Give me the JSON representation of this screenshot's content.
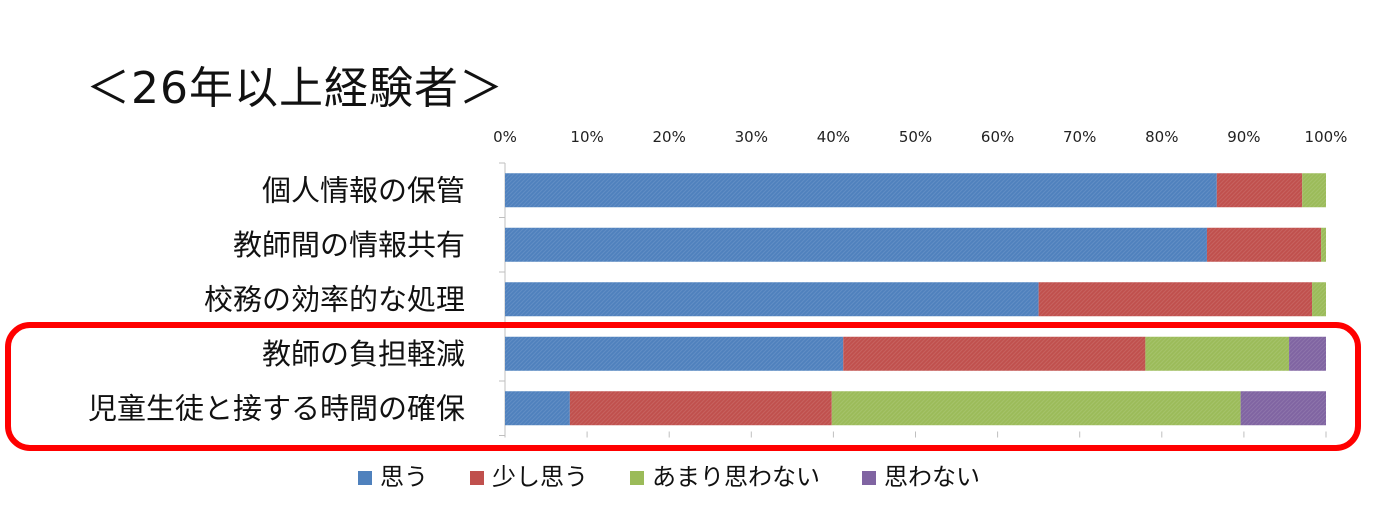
{
  "chart_data": {
    "type": "bar",
    "orientation": "horizontal",
    "stacked": true,
    "title": "＜26年以上経験者＞",
    "xlabel": "",
    "ylabel": "",
    "xlim": [
      0,
      100
    ],
    "x_ticks": [
      "0%",
      "10%",
      "20%",
      "30%",
      "40%",
      "50%",
      "60%",
      "70%",
      "80%",
      "90%",
      "100%"
    ],
    "categories": [
      "個人情報の保管",
      "教師間の情報共有",
      "校務の効率的な処理",
      "教師の負担軽減",
      "児童生徒と接する時間の確保"
    ],
    "series": [
      {
        "name": "思う",
        "color": "#4f81bd",
        "values": [
          86.7,
          85.5,
          65.0,
          41.2,
          7.9
        ]
      },
      {
        "name": "少し思う",
        "color": "#c0504d",
        "values": [
          10.4,
          13.9,
          33.3,
          36.8,
          31.9
        ]
      },
      {
        "name": "あまり思わない",
        "color": "#9bbb59",
        "values": [
          2.9,
          0.6,
          1.7,
          17.5,
          49.8
        ]
      },
      {
        "name": "思わない",
        "color": "#8064a2",
        "values": [
          0.0,
          0.0,
          0.0,
          4.5,
          10.4
        ]
      }
    ],
    "legend_position": "bottom",
    "grid": false,
    "highlight": {
      "categories": [
        "教師の負担軽減",
        "児童生徒と接する時間の確保"
      ],
      "color": "#ff0000"
    }
  }
}
